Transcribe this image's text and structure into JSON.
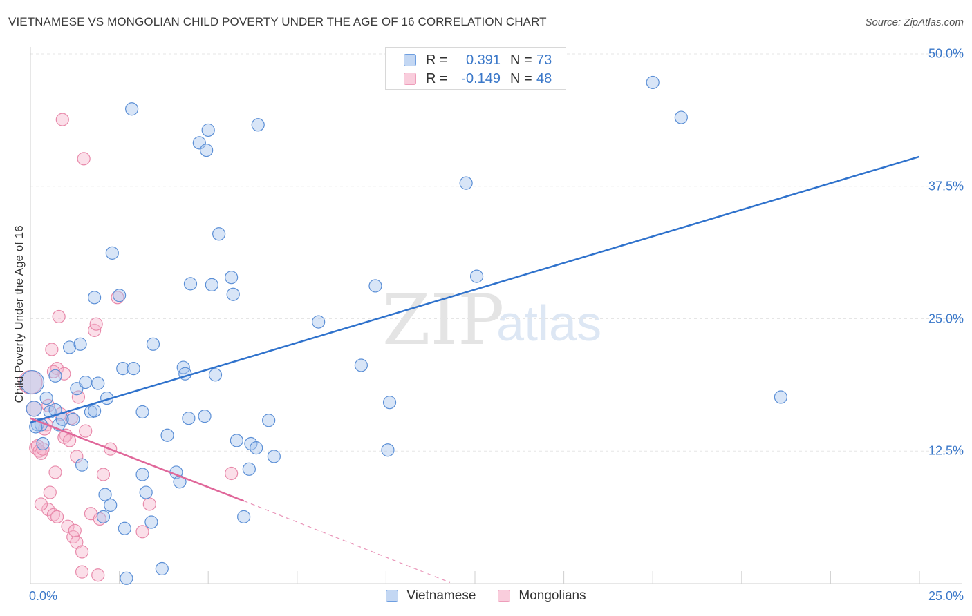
{
  "title": "VIETNAMESE VS MONGOLIAN CHILD POVERTY UNDER THE AGE OF 16 CORRELATION CHART",
  "source": "Source: ZipAtlas.com",
  "watermark": {
    "zip": "ZIP",
    "atlas": "atlas"
  },
  "colors": {
    "blue_fill": "#a9c6ee",
    "blue_stroke": "#5b8fd6",
    "blue_line": "#2f72cc",
    "pink_fill": "#f6b9ce",
    "pink_stroke": "#e889aa",
    "pink_line": "#e0679a",
    "tick_label": "#3b78c9",
    "grid": "#e5e5e5"
  },
  "legend_top": [
    {
      "r_label": "R =",
      "r_value": "0.391",
      "n_label": "N =",
      "n_value": "73",
      "color": "blue"
    },
    {
      "r_label": "R =",
      "r_value": "-0.149",
      "n_label": "N =",
      "n_value": "48",
      "color": "pink"
    }
  ],
  "legend_bottom": [
    {
      "label": "Vietnamese",
      "color": "blue"
    },
    {
      "label": "Mongolians",
      "color": "pink"
    }
  ],
  "chart_data": {
    "type": "scatter",
    "title": "VIETNAMESE VS MONGOLIAN CHILD POVERTY UNDER THE AGE OF 16 CORRELATION CHART",
    "xlabel": "",
    "ylabel": "Child Poverty Under the Age of 16",
    "xlim": [
      0,
      25
    ],
    "ylim": [
      0,
      50
    ],
    "x_tick_labels": [
      {
        "value": 0,
        "label": "0.0%"
      },
      {
        "value": 25,
        "label": "25.0%"
      }
    ],
    "y_tick_labels": [
      {
        "value": 12.5,
        "label": "12.5%"
      },
      {
        "value": 25,
        "label": "25.0%"
      },
      {
        "value": 37.5,
        "label": "37.5%"
      },
      {
        "value": 50,
        "label": "50.0%"
      }
    ],
    "grid": true,
    "legend_placement": "bottom",
    "series": [
      {
        "name": "Vietnamese",
        "r": 0.391,
        "n": 73,
        "trend": {
          "x0": 0,
          "y0": 15.2,
          "x1": 25,
          "y1": 40.3
        },
        "points": [
          [
            0.05,
            19
          ],
          [
            0.1,
            16.5
          ],
          [
            0.2,
            15
          ],
          [
            0.3,
            15
          ],
          [
            0.35,
            13.2
          ],
          [
            0.45,
            17.5
          ],
          [
            0.55,
            16.2
          ],
          [
            0.7,
            16.4
          ],
          [
            0.7,
            19.6
          ],
          [
            0.8,
            15
          ],
          [
            0.9,
            15.5
          ],
          [
            1.1,
            22.3
          ],
          [
            1.2,
            15.5
          ],
          [
            1.3,
            18.4
          ],
          [
            1.4,
            22.6
          ],
          [
            1.45,
            11.2
          ],
          [
            1.55,
            19
          ],
          [
            1.7,
            16.2
          ],
          [
            1.8,
            16.3
          ],
          [
            1.8,
            27
          ],
          [
            1.9,
            18.9
          ],
          [
            2.05,
            6.3
          ],
          [
            2.1,
            8.4
          ],
          [
            2.15,
            17.5
          ],
          [
            2.25,
            7.4
          ],
          [
            2.3,
            31.2
          ],
          [
            2.5,
            27.2
          ],
          [
            2.65,
            5.2
          ],
          [
            2.6,
            20.3
          ],
          [
            2.9,
            20.3
          ],
          [
            2.85,
            44.8
          ],
          [
            3.15,
            16.2
          ],
          [
            3.15,
            10.3
          ],
          [
            3.25,
            8.6
          ],
          [
            3.4,
            5.8
          ],
          [
            3.45,
            22.6
          ],
          [
            3.7,
            1.4
          ],
          [
            3.85,
            14
          ],
          [
            4.1,
            10.5
          ],
          [
            4.2,
            9.6
          ],
          [
            4.3,
            20.4
          ],
          [
            4.35,
            19.8
          ],
          [
            4.45,
            15.6
          ],
          [
            4.5,
            28.3
          ],
          [
            4.75,
            41.6
          ],
          [
            4.9,
            15.8
          ],
          [
            4.95,
            40.9
          ],
          [
            5.0,
            42.8
          ],
          [
            5.1,
            28.2
          ],
          [
            5.2,
            19.7
          ],
          [
            5.3,
            33
          ],
          [
            5.65,
            28.9
          ],
          [
            5.7,
            27.3
          ],
          [
            5.8,
            13.5
          ],
          [
            6.0,
            6.3
          ],
          [
            6.15,
            10.8
          ],
          [
            6.2,
            13.2
          ],
          [
            6.35,
            12.8
          ],
          [
            6.4,
            43.3
          ],
          [
            6.7,
            15.4
          ],
          [
            6.85,
            12
          ],
          [
            8.1,
            24.7
          ],
          [
            9.3,
            20.6
          ],
          [
            9.7,
            28.1
          ],
          [
            10.05,
            12.6
          ],
          [
            10.1,
            17.1
          ],
          [
            12.25,
            37.8
          ],
          [
            12.55,
            29
          ],
          [
            17.5,
            47.3
          ],
          [
            18.3,
            44
          ],
          [
            21.1,
            17.6
          ],
          [
            2.7,
            0.5
          ],
          [
            0.15,
            14.8
          ]
        ]
      },
      {
        "name": "Mongolians",
        "r": -0.149,
        "n": 48,
        "trend": {
          "x0": 0,
          "y0": 15.6,
          "x1": 6.0,
          "y1": 7.8,
          "dashed_to_x": 11.8,
          "dashed_to_y": 0.1
        },
        "points": [
          [
            0.0,
            19
          ],
          [
            0.1,
            16.5
          ],
          [
            0.15,
            12.8
          ],
          [
            0.2,
            13
          ],
          [
            0.25,
            12.5
          ],
          [
            0.3,
            12.3
          ],
          [
            0.35,
            12.7
          ],
          [
            0.45,
            15
          ],
          [
            0.5,
            7
          ],
          [
            0.55,
            8.6
          ],
          [
            0.65,
            6.5
          ],
          [
            0.7,
            10.5
          ],
          [
            0.75,
            20.3
          ],
          [
            0.8,
            25.2
          ],
          [
            0.9,
            43.8
          ],
          [
            0.95,
            19.8
          ],
          [
            1.0,
            14
          ],
          [
            1.05,
            5.4
          ],
          [
            1.15,
            15.6
          ],
          [
            1.2,
            4.4
          ],
          [
            1.25,
            5
          ],
          [
            1.3,
            3.9
          ],
          [
            1.3,
            12
          ],
          [
            1.35,
            17.6
          ],
          [
            1.5,
            40.1
          ],
          [
            1.45,
            3
          ],
          [
            1.45,
            1.1
          ],
          [
            1.55,
            14.4
          ],
          [
            1.7,
            6.6
          ],
          [
            1.8,
            23.9
          ],
          [
            1.85,
            24.5
          ],
          [
            1.9,
            0.8
          ],
          [
            1.95,
            6.1
          ],
          [
            2.05,
            10.3
          ],
          [
            2.25,
            12.7
          ],
          [
            2.45,
            27
          ],
          [
            3.15,
            4.9
          ],
          [
            3.35,
            7.5
          ],
          [
            5.65,
            10.4
          ],
          [
            0.6,
            22.1
          ],
          [
            0.65,
            20
          ],
          [
            0.85,
            16
          ],
          [
            0.95,
            13.8
          ],
          [
            1.1,
            13.5
          ],
          [
            0.4,
            14.6
          ],
          [
            0.5,
            16.8
          ],
          [
            0.75,
            6.3
          ],
          [
            0.3,
            7.5
          ]
        ]
      }
    ]
  }
}
